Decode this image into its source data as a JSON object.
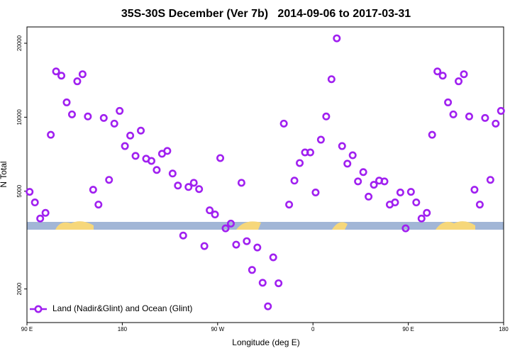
{
  "chart_data": {
    "type": "scatter",
    "title": "35S-30S December (Ver 7b)   2014-09-06 to 2017-03-31",
    "x_label": "Longitude (deg E)",
    "y_label": "N Total",
    "log_y": true,
    "legend": "bottom-left",
    "xlim": [
      90,
      540
    ],
    "xticks": [
      {
        "value": 90,
        "label": "90 E"
      },
      180,
      {
        "value": 270,
        "label": "90 W"
      },
      {
        "value": 360,
        "label": "0"
      },
      {
        "value": 450,
        "label": "90 E"
      },
      {
        "value": 540,
        "label": "180"
      }
    ],
    "ylim": [
      1460,
      23300
    ],
    "yticks": [
      2000,
      5000,
      10000,
      20000
    ],
    "x": [
      92.5,
      97.5,
      102.5,
      107.5,
      112.5,
      117.5,
      122.5,
      127.5,
      132.5,
      137.5,
      142.5,
      147.5,
      152.5,
      157.5,
      162.5,
      167.5,
      172.5,
      177.5,
      182.5,
      187.5,
      192.5,
      197.5,
      202.5,
      207.5,
      212.5,
      217.5,
      222.5,
      227.5,
      232.5,
      237.5,
      242.5,
      247.5,
      252.5,
      257.5,
      262.5,
      267.5,
      272.5,
      277.5,
      282.5,
      287.5,
      292.5,
      297.5,
      302.5,
      307.5,
      312.5,
      317.5,
      322.5,
      327.5,
      332.5,
      337.5,
      342.5,
      347.5,
      352.5,
      357.5,
      362.5,
      367.5,
      372.5,
      377.5,
      382.5,
      387.5,
      392.5,
      397.5,
      402.5,
      407.5,
      412.5,
      417.5,
      422.5,
      427.5,
      432.5,
      437.5,
      442.5,
      447.5,
      452.5,
      457.5,
      462.5,
      467.5,
      472.5,
      477.5,
      482.5,
      487.5,
      492.5,
      497.5,
      502.5,
      507.5,
      512.5,
      517.5,
      522.5,
      527.5,
      532.5,
      537.5
    ],
    "series": [
      {
        "name": "Land (Nadir&Glint) and Ocean (Glint)",
        "color": "#a020f0",
        "values": [
          4970,
          4500,
          3870,
          4080,
          8480,
          15360,
          14760,
          11490,
          10270,
          14000,
          14960,
          10070,
          5070,
          4410,
          9930,
          5560,
          9420,
          10610,
          7630,
          8420,
          6960,
          8820,
          6780,
          6640,
          6100,
          7100,
          7290,
          5900,
          5270,
          3300,
          5200,
          5410,
          5100,
          2990,
          4180,
          4020,
          6820,
          3530,
          3690,
          3030,
          5410,
          3130,
          2390,
          2950,
          2120,
          1700,
          2690,
          2110,
          9420,
          4410,
          5520,
          6510,
          7190,
          7190,
          4940,
          8100,
          10070,
          14280,
          20940,
          7630,
          6470,
          7000,
          5480,
          5980,
          4750,
          5310,
          5520,
          5480,
          4410,
          4500,
          4940,
          3530,
          4970,
          4500,
          3870,
          4080,
          8480,
          15360,
          14760,
          11490,
          10270,
          14000,
          14960,
          10070,
          5070,
          4410,
          9930,
          5560,
          9420,
          10610
        ]
      }
    ]
  }
}
